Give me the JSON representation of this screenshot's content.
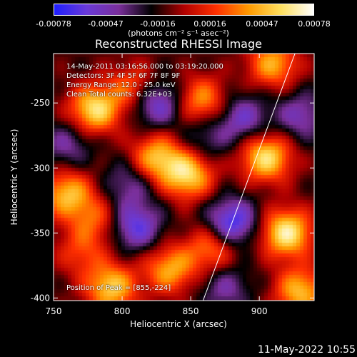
{
  "colorbar": {
    "ticks": [
      "-0.00078",
      "-0.00047",
      "-0.00016",
      "0.00016",
      "0.00047",
      "0.00078"
    ],
    "unit": "(photons cm⁻² s⁻¹ asec⁻²)"
  },
  "chart_data": {
    "type": "heatmap",
    "title": "Reconstructed RHESSI Image",
    "xlabel": "Heliocentric X (arcsec)",
    "ylabel": "Heliocentric Y (arcsec)",
    "xlim": [
      750,
      940
    ],
    "ylim": [
      -402,
      -212
    ],
    "xticks": [
      750,
      800,
      850,
      900
    ],
    "yticks": [
      -250,
      -300,
      -350,
      -400
    ],
    "colorscale": [
      "#1f1fff",
      "#6a3ad8",
      "#7a2f9a",
      "#000000",
      "#b00000",
      "#ff3000",
      "#ff9a00",
      "#ffe060",
      "#ffffff"
    ],
    "colorbar_range": [
      -0.00078,
      0.00078
    ],
    "blobs": [
      {
        "x": 780,
        "y": -255,
        "v": 0.00072
      },
      {
        "x": 760,
        "y": -320,
        "v": 0.0006
      },
      {
        "x": 792,
        "y": -392,
        "v": 0.00065
      },
      {
        "x": 825,
        "y": -292,
        "v": 0.0006
      },
      {
        "x": 858,
        "y": -248,
        "v": 0.0005
      },
      {
        "x": 848,
        "y": -305,
        "v": 0.0007
      },
      {
        "x": 905,
        "y": -292,
        "v": 0.00072
      },
      {
        "x": 910,
        "y": -220,
        "v": 0.00055
      },
      {
        "x": 920,
        "y": -350,
        "v": 0.00078
      },
      {
        "x": 808,
        "y": -238,
        "v": 0.0004
      },
      {
        "x": 835,
        "y": -378,
        "v": 0.00055
      },
      {
        "x": 930,
        "y": -395,
        "v": 0.0006
      },
      {
        "x": 780,
        "y": -340,
        "v": 0.00035
      },
      {
        "x": 770,
        "y": -365,
        "v": 0.0003
      },
      {
        "x": 865,
        "y": -362,
        "v": 0.00045
      },
      {
        "x": 825,
        "y": -250,
        "v": -0.0005
      },
      {
        "x": 880,
        "y": -342,
        "v": -0.0006
      },
      {
        "x": 810,
        "y": -345,
        "v": -0.0005
      },
      {
        "x": 888,
        "y": -262,
        "v": -0.0004
      },
      {
        "x": 760,
        "y": -282,
        "v": -0.0003
      },
      {
        "x": 805,
        "y": -312,
        "v": -0.0003
      },
      {
        "x": 860,
        "y": -278,
        "v": -0.00025
      },
      {
        "x": 875,
        "y": -392,
        "v": -0.0003
      },
      {
        "x": 930,
        "y": -260,
        "v": -0.00035
      }
    ],
    "limb_line": [
      {
        "x": 859,
        "y": -402
      },
      {
        "x": 926,
        "y": -212
      }
    ],
    "peak": [
      855,
      -224
    ]
  },
  "info": {
    "time": "14-May-2011 03:16:56.000 to 03:19:20.000",
    "detectors": "Detectors: 3F 4F 5F 6F 7F 8F 9F",
    "energy": "Energy Range: 12.0 - 25.0 keV",
    "clean": "Clean     Total counts: 6.32E+03",
    "peak": "Position of Peak = [855,-224]"
  },
  "footer": {
    "date": "11-May-2022 10:55"
  }
}
